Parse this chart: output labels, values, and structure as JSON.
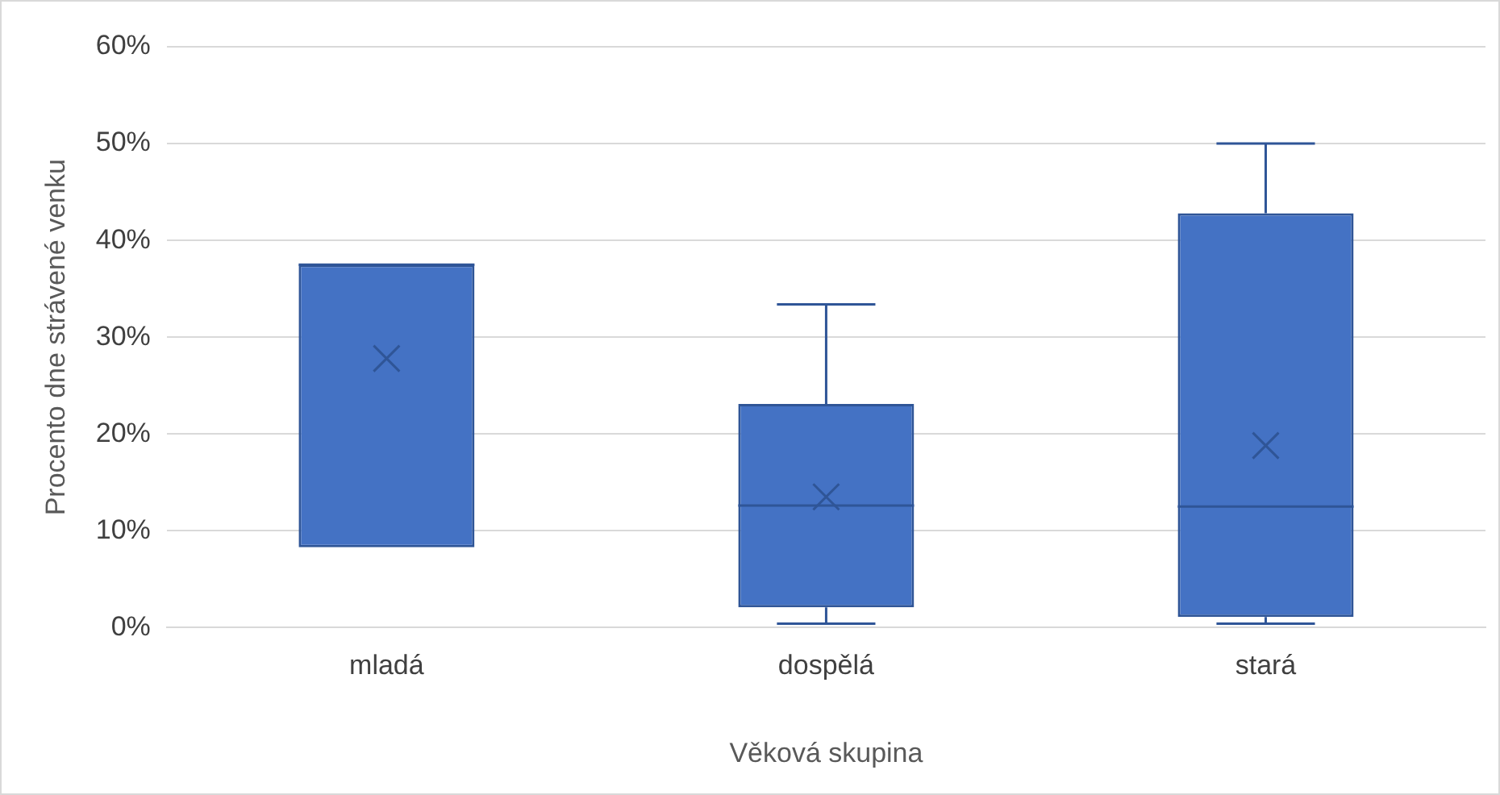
{
  "chart_data": {
    "type": "box",
    "xlabel": "Věková skupina",
    "ylabel": "Procento dne strávené venku",
    "categories": [
      "mladá",
      "dospělá",
      "stará"
    ],
    "color": "#4472c4",
    "boxes": [
      {
        "low": 8.3,
        "q1": 8.3,
        "median": 37.5,
        "q3": 37.5,
        "high": 37.5,
        "mean": 27.8
      },
      {
        "low": 0.4,
        "q1": 2.1,
        "median": 12.6,
        "q3": 23.1,
        "high": 33.4,
        "mean": 13.5
      },
      {
        "low": 0.4,
        "q1": 1.1,
        "median": 12.5,
        "q3": 42.8,
        "high": 50,
        "mean": 18.8
      }
    ],
    "ylim": [
      0,
      60
    ],
    "yticks": [
      {
        "value": 0,
        "label": "0%"
      },
      {
        "value": 10,
        "label": "10%"
      },
      {
        "value": 20,
        "label": "20%"
      },
      {
        "value": 30,
        "label": "30%"
      },
      {
        "value": 40,
        "label": "40%"
      },
      {
        "value": 50,
        "label": "50%"
      },
      {
        "value": 60,
        "label": "60%"
      }
    ],
    "grid": "y",
    "legend": false,
    "marker": "cross"
  }
}
